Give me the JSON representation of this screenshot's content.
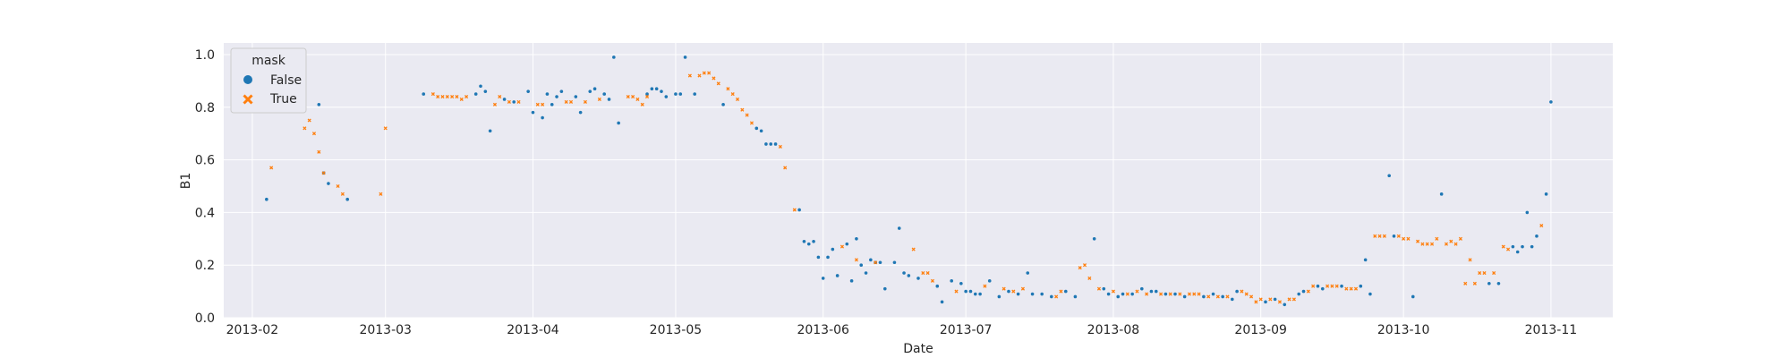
{
  "chart_data": {
    "type": "scatter",
    "xlabel": "Date",
    "ylabel": "B1",
    "xlim": [
      "2013-01-26",
      "2013-11-14"
    ],
    "ylim": [
      0,
      1.0
    ],
    "grid": true,
    "x_ticks": [
      "2013-02-01",
      "2013-03-01",
      "2013-04-01",
      "2013-05-01",
      "2013-06-01",
      "2013-07-01",
      "2013-08-01",
      "2013-09-01",
      "2013-10-01",
      "2013-11-01"
    ],
    "x_tick_labels": [
      "2013-02",
      "2013-03",
      "2013-04",
      "2013-05",
      "2013-06",
      "2013-07",
      "2013-08",
      "2013-09",
      "2013-10",
      "2013-11"
    ],
    "y_ticks": [
      0.0,
      0.2,
      0.4,
      0.6,
      0.8,
      1.0
    ],
    "y_tick_labels": [
      "0.0",
      "0.2",
      "0.4",
      "0.6",
      "0.8",
      "1.0"
    ],
    "legend": {
      "title": "mask",
      "placement": "top-left",
      "entries": [
        {
          "label": "False",
          "marker": "circle",
          "color": "#1f77b4"
        },
        {
          "label": "True",
          "marker": "x",
          "color": "#ff7f0e"
        }
      ]
    },
    "series": [
      {
        "name": "False",
        "color": "#1f77b4",
        "marker": "circle",
        "x": [
          "2013-02-04",
          "2013-02-15",
          "2013-02-16",
          "2013-02-17",
          "2013-02-21",
          "2013-03-09",
          "2013-03-20",
          "2013-03-21",
          "2013-03-22",
          "2013-03-23",
          "2013-03-26",
          "2013-03-28",
          "2013-03-31",
          "2013-04-01",
          "2013-04-03",
          "2013-04-04",
          "2013-04-05",
          "2013-04-06",
          "2013-04-07",
          "2013-04-10",
          "2013-04-11",
          "2013-04-13",
          "2013-04-14",
          "2013-04-16",
          "2013-04-17",
          "2013-04-18",
          "2013-04-19",
          "2013-04-25",
          "2013-04-26",
          "2013-04-27",
          "2013-04-28",
          "2013-04-29",
          "2013-05-01",
          "2013-05-02",
          "2013-05-03",
          "2013-05-05",
          "2013-05-11",
          "2013-05-18",
          "2013-05-19",
          "2013-05-20",
          "2013-05-21",
          "2013-05-22",
          "2013-05-27",
          "2013-05-28",
          "2013-05-29",
          "2013-05-30",
          "2013-05-31",
          "2013-06-01",
          "2013-06-02",
          "2013-06-03",
          "2013-06-04",
          "2013-06-06",
          "2013-06-07",
          "2013-06-08",
          "2013-06-09",
          "2013-06-10",
          "2013-06-11",
          "2013-06-12",
          "2013-06-13",
          "2013-06-14",
          "2013-06-16",
          "2013-06-17",
          "2013-06-18",
          "2013-06-19",
          "2013-06-21",
          "2013-06-25",
          "2013-06-26",
          "2013-06-28",
          "2013-06-30",
          "2013-07-01",
          "2013-07-02",
          "2013-07-03",
          "2013-07-04",
          "2013-07-06",
          "2013-07-08",
          "2013-07-10",
          "2013-07-12",
          "2013-07-14",
          "2013-07-15",
          "2013-07-17",
          "2013-07-19",
          "2013-07-22",
          "2013-07-24",
          "2013-07-28",
          "2013-07-30",
          "2013-07-31",
          "2013-08-02",
          "2013-08-03",
          "2013-08-05",
          "2013-08-07",
          "2013-08-09",
          "2013-08-10",
          "2013-08-12",
          "2013-08-14",
          "2013-08-16",
          "2013-08-20",
          "2013-08-22",
          "2013-08-24",
          "2013-08-26",
          "2013-08-27",
          "2013-09-02",
          "2013-09-04",
          "2013-09-06",
          "2013-09-09",
          "2013-09-10",
          "2013-09-13",
          "2013-09-14",
          "2013-09-18",
          "2013-09-22",
          "2013-09-23",
          "2013-09-24",
          "2013-09-28",
          "2013-09-29",
          "2013-10-03",
          "2013-10-09",
          "2013-10-19",
          "2013-10-21",
          "2013-10-24",
          "2013-10-25",
          "2013-10-26",
          "2013-10-27",
          "2013-10-28",
          "2013-10-29",
          "2013-10-31",
          "2013-11-01"
        ],
        "y": [
          0.45,
          0.81,
          0.55,
          0.51,
          0.45,
          0.85,
          0.85,
          0.88,
          0.86,
          0.71,
          0.83,
          0.82,
          0.86,
          0.78,
          0.76,
          0.85,
          0.81,
          0.84,
          0.86,
          0.84,
          0.78,
          0.86,
          0.87,
          0.85,
          0.83,
          0.99,
          0.74,
          0.85,
          0.87,
          0.87,
          0.86,
          0.84,
          0.85,
          0.85,
          0.99,
          0.85,
          0.81,
          0.72,
          0.71,
          0.66,
          0.66,
          0.66,
          0.41,
          0.29,
          0.28,
          0.29,
          0.23,
          0.15,
          0.23,
          0.26,
          0.16,
          0.28,
          0.14,
          0.3,
          0.2,
          0.17,
          0.22,
          0.21,
          0.21,
          0.11,
          0.21,
          0.34,
          0.17,
          0.16,
          0.15,
          0.12,
          0.06,
          0.14,
          0.13,
          0.1,
          0.1,
          0.09,
          0.09,
          0.14,
          0.08,
          0.1,
          0.09,
          0.17,
          0.09,
          0.09,
          0.08,
          0.1,
          0.08,
          0.3,
          0.11,
          0.09,
          0.08,
          0.09,
          0.09,
          0.11,
          0.1,
          0.1,
          0.09,
          0.09,
          0.08,
          0.08,
          0.09,
          0.08,
          0.07,
          0.1,
          0.06,
          0.07,
          0.05,
          0.09,
          0.1,
          0.12,
          0.11,
          0.12,
          0.12,
          0.22,
          0.09,
          0.54,
          0.31,
          0.08,
          0.47,
          0.13,
          0.13,
          0.27,
          0.25,
          0.27,
          0.4,
          0.27,
          0.31,
          0.47,
          0.82
        ]
      },
      {
        "name": "True",
        "color": "#ff7f0e",
        "marker": "x",
        "x": [
          "2013-02-05",
          "2013-02-12",
          "2013-02-13",
          "2013-02-14",
          "2013-02-15",
          "2013-02-16",
          "2013-02-19",
          "2013-02-20",
          "2013-02-28",
          "2013-03-01",
          "2013-03-11",
          "2013-03-12",
          "2013-03-13",
          "2013-03-14",
          "2013-03-15",
          "2013-03-16",
          "2013-03-17",
          "2013-03-18",
          "2013-03-24",
          "2013-03-25",
          "2013-03-27",
          "2013-03-29",
          "2013-04-02",
          "2013-04-03",
          "2013-04-08",
          "2013-04-09",
          "2013-04-12",
          "2013-04-15",
          "2013-04-21",
          "2013-04-22",
          "2013-04-23",
          "2013-04-24",
          "2013-04-25",
          "2013-05-04",
          "2013-05-06",
          "2013-05-07",
          "2013-05-08",
          "2013-05-09",
          "2013-05-10",
          "2013-05-12",
          "2013-05-13",
          "2013-05-14",
          "2013-05-15",
          "2013-05-16",
          "2013-05-17",
          "2013-05-23",
          "2013-05-24",
          "2013-05-26",
          "2013-06-05",
          "2013-06-08",
          "2013-06-12",
          "2013-06-20",
          "2013-06-22",
          "2013-06-23",
          "2013-06-24",
          "2013-06-29",
          "2013-07-05",
          "2013-07-09",
          "2013-07-11",
          "2013-07-13",
          "2013-07-20",
          "2013-07-21",
          "2013-07-25",
          "2013-07-26",
          "2013-07-27",
          "2013-07-29",
          "2013-08-01",
          "2013-08-04",
          "2013-08-06",
          "2013-08-08",
          "2013-08-11",
          "2013-08-13",
          "2013-08-15",
          "2013-08-17",
          "2013-08-18",
          "2013-08-19",
          "2013-08-21",
          "2013-08-23",
          "2013-08-25",
          "2013-08-28",
          "2013-08-29",
          "2013-08-30",
          "2013-08-31",
          "2013-09-01",
          "2013-09-03",
          "2013-09-05",
          "2013-09-07",
          "2013-09-08",
          "2013-09-11",
          "2013-09-12",
          "2013-09-15",
          "2013-09-16",
          "2013-09-17",
          "2013-09-19",
          "2013-09-20",
          "2013-09-21",
          "2013-09-25",
          "2013-09-26",
          "2013-09-27",
          "2013-09-30",
          "2013-10-01",
          "2013-10-02",
          "2013-10-04",
          "2013-10-05",
          "2013-10-06",
          "2013-10-07",
          "2013-10-08",
          "2013-10-10",
          "2013-10-11",
          "2013-10-12",
          "2013-10-13",
          "2013-10-14",
          "2013-10-15",
          "2013-10-16",
          "2013-10-17",
          "2013-10-18",
          "2013-10-20",
          "2013-10-22",
          "2013-10-23",
          "2013-10-30"
        ],
        "y": [
          0.57,
          0.72,
          0.75,
          0.7,
          0.63,
          0.55,
          0.5,
          0.47,
          0.47,
          0.72,
          0.85,
          0.84,
          0.84,
          0.84,
          0.84,
          0.84,
          0.83,
          0.84,
          0.81,
          0.84,
          0.82,
          0.82,
          0.81,
          0.81,
          0.82,
          0.82,
          0.82,
          0.83,
          0.84,
          0.84,
          0.83,
          0.81,
          0.84,
          0.92,
          0.92,
          0.93,
          0.93,
          0.91,
          0.89,
          0.87,
          0.85,
          0.83,
          0.79,
          0.77,
          0.74,
          0.65,
          0.57,
          0.41,
          0.27,
          0.22,
          0.21,
          0.26,
          0.17,
          0.17,
          0.14,
          0.1,
          0.12,
          0.11,
          0.1,
          0.11,
          0.08,
          0.1,
          0.19,
          0.2,
          0.15,
          0.11,
          0.1,
          0.09,
          0.1,
          0.09,
          0.09,
          0.09,
          0.09,
          0.09,
          0.09,
          0.09,
          0.08,
          0.08,
          0.08,
          0.1,
          0.09,
          0.08,
          0.06,
          0.07,
          0.07,
          0.06,
          0.07,
          0.07,
          0.1,
          0.12,
          0.12,
          0.12,
          0.12,
          0.11,
          0.11,
          0.11,
          0.31,
          0.31,
          0.31,
          0.31,
          0.3,
          0.3,
          0.29,
          0.28,
          0.28,
          0.28,
          0.3,
          0.28,
          0.29,
          0.28,
          0.3,
          0.13,
          0.22,
          0.13,
          0.17,
          0.17,
          0.17,
          0.27,
          0.26,
          0.35
        ]
      }
    ]
  }
}
